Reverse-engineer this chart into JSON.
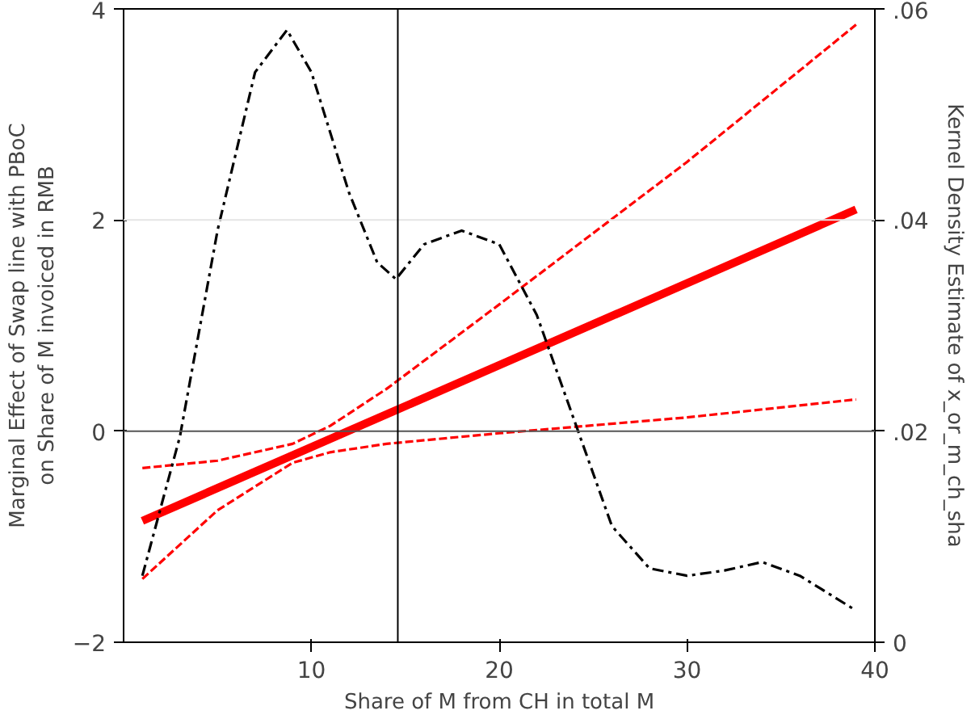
{
  "chart_data": {
    "type": "line",
    "xlabel": "Share of M from CH in total M",
    "ylabel": "Marginal Effect of Swap line with PBoC\non Share of M invoiced in RMB",
    "y2label": "Kernel Density Estimate of x_or_m_ch_sha",
    "xlim": [
      0,
      40
    ],
    "xticks": [
      10,
      20,
      30,
      40
    ],
    "ylim": [
      -2,
      4
    ],
    "yticks": [
      {
        "value": -2,
        "label": "−2"
      },
      0,
      2,
      4
    ],
    "y2lim": [
      0,
      0.06
    ],
    "y2ticks": [
      {
        "value": 0,
        "label": "0"
      },
      {
        "value": 0.02,
        "label": ".02"
      },
      {
        "value": 0.04,
        "label": ".04"
      },
      {
        "value": 0.06,
        "label": ".06"
      }
    ],
    "marker": "none",
    "series": [
      {
        "color": "#ff0000",
        "line_style": "solid",
        "x": [
          1,
          39
        ],
        "values": [
          -0.85,
          2.1
        ]
      },
      {
        "color": "#ff0000",
        "line_style": "dashed",
        "x": [
          1,
          5,
          9,
          11,
          14,
          20,
          30,
          39
        ],
        "values": [
          -0.35,
          -0.28,
          -0.12,
          0.05,
          0.4,
          1.2,
          2.55,
          3.85
        ]
      },
      {
        "color": "#ff0000",
        "line_style": "dashed",
        "x": [
          1,
          5,
          9,
          11,
          14,
          20,
          30,
          39
        ],
        "values": [
          -1.4,
          -0.75,
          -0.3,
          -0.2,
          -0.12,
          -0.02,
          0.13,
          0.3
        ]
      },
      {
        "color": "#000000",
        "line_style": "dashdot",
        "axis": "y2",
        "x": [
          1,
          3,
          5,
          7,
          8.7,
          10,
          12,
          13.5,
          14.5,
          16,
          18,
          20,
          22,
          24,
          26,
          28,
          30,
          32,
          34,
          36,
          39
        ],
        "values": [
          0.0063,
          0.0195,
          0.039,
          0.054,
          0.058,
          0.054,
          0.0426,
          0.036,
          0.0344,
          0.0377,
          0.039,
          0.0377,
          0.031,
          0.021,
          0.011,
          0.007,
          0.0063,
          0.0068,
          0.0076,
          0.0063,
          0.003
        ]
      }
    ],
    "ref_lines": [
      {
        "axis": "y",
        "value": 2,
        "color": "#e5e5e5"
      },
      {
        "axis": "y",
        "value": 0,
        "color": "#555555"
      },
      {
        "axis": "x",
        "value": 14.6,
        "color": "#000000"
      }
    ]
  }
}
